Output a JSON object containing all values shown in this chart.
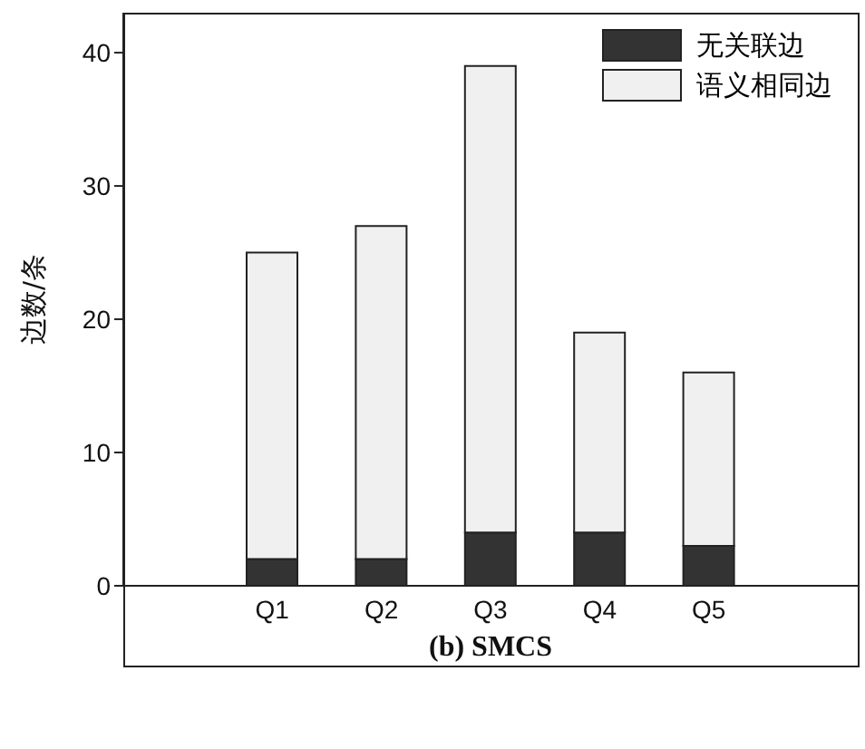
{
  "chart_data": {
    "type": "bar",
    "stacked": true,
    "xlabel": "(b) SMCS",
    "ylabel": "边数/条",
    "categories": [
      "Q1",
      "Q2",
      "Q3",
      "Q4",
      "Q5"
    ],
    "series": [
      {
        "name": "无关联边",
        "color": "#333333",
        "values": [
          2,
          2,
          4,
          4,
          3
        ]
      },
      {
        "name": "语义相同边",
        "color": "#f0f0f0",
        "values": [
          23,
          25,
          35,
          15,
          13
        ]
      }
    ],
    "ylim": [
      0,
      43
    ],
    "yticks": [
      0,
      10,
      20,
      30,
      40
    ],
    "legend": "top right"
  }
}
